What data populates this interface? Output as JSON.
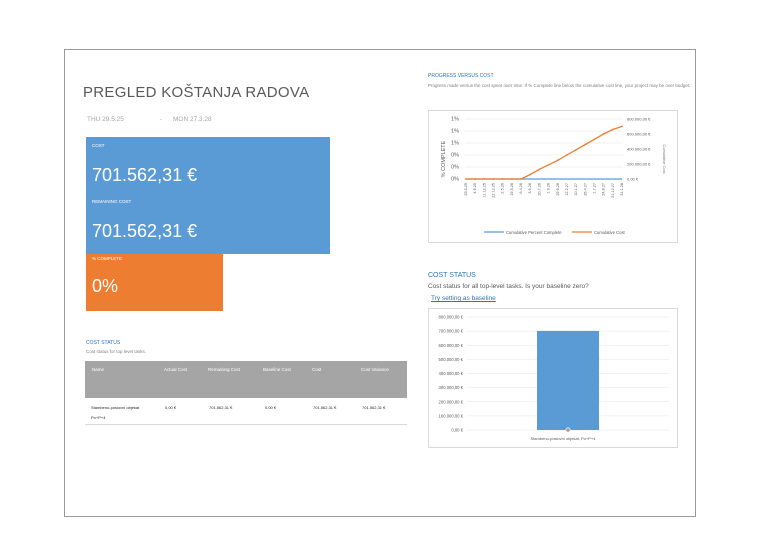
{
  "report": {
    "title": "PREGLED KOŠTANJA RADOVA",
    "date_start": "THU 29.5.25",
    "date_sep": "-",
    "date_end": "MON 27.3.28"
  },
  "cards": {
    "cost_label": "COST",
    "cost_value": "701.562,31 €",
    "remaining_label": "REMAINING COST",
    "remaining_value": "701.562,31 €",
    "complete_label": "% COMPLETE",
    "complete_value": "0%"
  },
  "cost_status_table": {
    "heading": "COST STATUS",
    "subheading": "Cost status for top level tasks.",
    "columns": [
      "Name",
      "Actual Cost",
      "Remaining Cost",
      "Baseline Cost",
      "Cost",
      "Cost Variance"
    ],
    "rows": [
      {
        "name_line1": "Stambeno-poslovni objekat",
        "name_line2": "Po+P+4",
        "actual": "0,00 €",
        "remaining": "701.562,31 €",
        "baseline": "0,00 €",
        "cost": "701.562,31 €",
        "variance": "701.562,31 €"
      }
    ]
  },
  "progress_chart": {
    "heading": "PROGRESS VERSUS COST",
    "description": "Progress made versus the cost spent over time. If % Complete line below the cumulative cost line, your project may be over budget.",
    "legend": [
      "Cumulative Percent Complete",
      "Cumulative Cost"
    ],
    "left_axis_label": "% COMPLETE",
    "right_axis_label": "Cumulative Cost",
    "left_ticks": [
      "1%",
      "1%",
      "1%",
      "0%",
      "0%",
      "0%"
    ],
    "right_ticks": [
      "800.000,00 €",
      "600.000,00 €",
      "400.000,00 €",
      "200.000,00 €",
      "0,00 €"
    ],
    "colors": {
      "complete": "#5b9bd5",
      "cost": "#ed7d31"
    }
  },
  "cost_status_chart": {
    "heading": "COST STATUS",
    "subheading": "Cost status for all top-level tasks. Is your baseline zero?",
    "link": "Try setting as baseline",
    "color": "#5b9bd5"
  },
  "chart_data": [
    {
      "type": "line",
      "x": [
        "29.5.25",
        "4.9.25",
        "11.12.25",
        "22.12.25",
        "2.5.26",
        "19.5.26",
        "6.4.26",
        "3.5.26",
        "20.7.26",
        "1.9.26",
        "29.9.26",
        "12.2.27",
        "10.1.27",
        "26.4.27",
        "1.7.27",
        "24.8.27",
        "21.12.27",
        "31.1.28"
      ],
      "series": [
        {
          "name": "Cumulative Percent Complete",
          "axis": "left",
          "values": [
            0,
            0,
            0,
            0,
            0,
            0,
            0,
            0,
            0,
            0,
            0,
            0,
            0,
            0,
            0,
            0,
            0,
            0
          ]
        },
        {
          "name": "Cumulative Cost",
          "axis": "right",
          "values": [
            0,
            0,
            0,
            0,
            0,
            0,
            0,
            60000,
            130000,
            190000,
            250000,
            320000,
            390000,
            460000,
            530000,
            600000,
            660000,
            701562
          ]
        }
      ],
      "ylim_left": [
        0,
        1
      ],
      "ylim_right": [
        0,
        800000
      ]
    },
    {
      "type": "bar",
      "categories": [
        "Stambeno-poslovni objekat, Po+P+4"
      ],
      "series": [
        {
          "name": "Cost",
          "values": [
            701562.31
          ]
        },
        {
          "name": "Actual Cost",
          "values": [
            0
          ]
        }
      ],
      "yticks": [
        "800.000,00 €",
        "700.000,00 €",
        "600.000,00 €",
        "500.000,00 €",
        "400.000,00 €",
        "300.000,00 €",
        "200.000,00 €",
        "100.000,00 €",
        "0,00 €"
      ],
      "ylim": [
        0,
        800000
      ]
    }
  ]
}
